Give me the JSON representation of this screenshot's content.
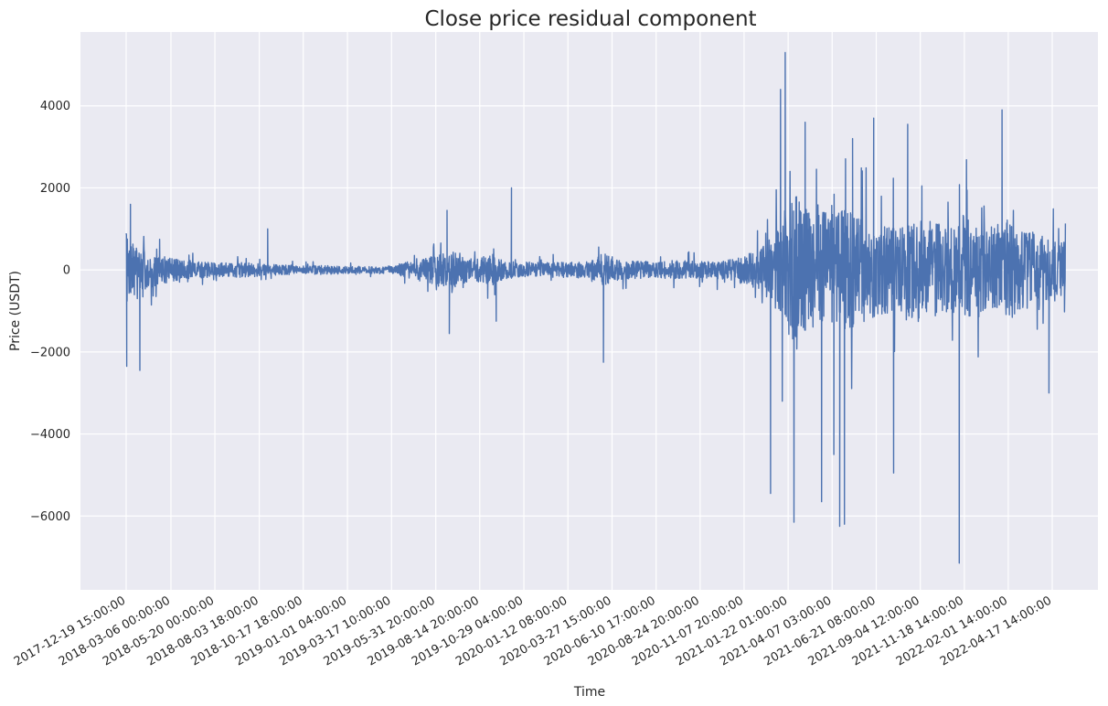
{
  "chart_data": {
    "type": "line",
    "title": "Close price residual component",
    "xlabel": "Time",
    "ylabel": "Price (USDT)",
    "grid": true,
    "legend": "none",
    "colors": {
      "background": "#eaeaf2",
      "grid": "#ffffff",
      "series": "#4c72b0"
    },
    "x_ticks": [
      "2017-12-19 15:00:00",
      "2018-03-06 00:00:00",
      "2018-05-20 00:00:00",
      "2018-08-03 18:00:00",
      "2018-10-17 18:00:00",
      "2019-01-01 04:00:00",
      "2019-03-17 10:00:00",
      "2019-05-31 20:00:00",
      "2019-08-14 20:00:00",
      "2019-10-29 04:00:00",
      "2020-01-12 08:00:00",
      "2020-03-27 15:00:00",
      "2020-06-10 17:00:00",
      "2020-08-24 20:00:00",
      "2020-11-07 20:00:00",
      "2021-01-22 01:00:00",
      "2021-04-07 03:00:00",
      "2021-06-21 08:00:00",
      "2021-09-04 12:00:00",
      "2021-11-18 14:00:00",
      "2022-02-01 14:00:00",
      "2022-04-17 14:00:00"
    ],
    "xlim": [
      "2017-12-19 15:00:00",
      "2022-06-01 00:00:00"
    ],
    "ylim": [
      -7800,
      5800
    ],
    "y_ticks": [
      -6000,
      -4000,
      -2000,
      0,
      2000,
      4000
    ],
    "y_tick_labels": [
      "−6000",
      "−4000",
      "−2000",
      "0",
      "2000",
      "4000"
    ],
    "series": [
      {
        "x": [
          "2017-12-19 15:00:00",
          "2017-12-22 00:00:00",
          "2018-01-05 00:00:00",
          "2018-01-20 00:00:00",
          "2018-02-05 00:00:00",
          "2018-03-01 00:00:00",
          "2018-04-01 00:00:00",
          "2018-05-01 00:00:00",
          "2018-06-01 00:00:00",
          "2018-07-01 00:00:00",
          "2018-08-01 00:00:00",
          "2018-08-20 00:00:00",
          "2018-09-15 00:00:00",
          "2018-10-17 18:00:00",
          "2018-11-20 00:00:00",
          "2019-01-01 04:00:00",
          "2019-02-15 00:00:00",
          "2019-03-17 10:00:00",
          "2019-04-15 00:00:00",
          "2019-05-10 00:00:00",
          "2019-06-10 00:00:00",
          "2019-06-26 00:00:00",
          "2019-07-15 00:00:00",
          "2019-08-10 00:00:00",
          "2019-09-05 00:00:00",
          "2019-10-01 00:00:00",
          "2019-10-29 04:00:00",
          "2019-12-01 00:00:00",
          "2020-01-12 08:00:00",
          "2020-02-15 00:00:00",
          "2020-03-13 00:00:00",
          "2020-04-15 00:00:00",
          "2020-05-15 00:00:00",
          "2020-06-10 17:00:00",
          "2020-07-15 00:00:00",
          "2020-08-24 20:00:00",
          "2020-09-20 00:00:00",
          "2020-10-20 00:00:00",
          "2020-11-07 20:00:00",
          "2020-12-05 00:00:00",
          "2020-12-20 00:00:00",
          "2021-01-05 00:00:00",
          "2021-01-22 01:00:00",
          "2021-02-01 00:00:00",
          "2021-02-15 00:00:00",
          "2021-03-01 00:00:00",
          "2021-03-15 00:00:00",
          "2021-04-01 00:00:00",
          "2021-04-15 00:00:00",
          "2021-05-01 00:00:00",
          "2021-05-15 00:00:00",
          "2021-06-01 00:00:00",
          "2021-06-21 08:00:00",
          "2021-07-10 00:00:00",
          "2021-08-01 00:00:00",
          "2021-08-20 00:00:00",
          "2021-09-04 12:00:00",
          "2021-09-25 00:00:00",
          "2021-10-15 00:00:00",
          "2021-11-10 00:00:00",
          "2021-11-18 14:00:00",
          "2021-12-05 00:00:00",
          "2021-12-25 00:00:00",
          "2022-01-15 00:00:00",
          "2022-02-01 14:00:00",
          "2022-02-20 00:00:00",
          "2022-03-10 00:00:00",
          "2022-04-01 00:00:00",
          "2022-04-17 14:00:00",
          "2022-05-01 00:00:00",
          "2022-05-10 00:00:00"
        ],
        "amplitude": [
          2400,
          1600,
          1300,
          1100,
          900,
          700,
          500,
          420,
          380,
          400,
          350,
          300,
          280,
          220,
          250,
          200,
          180,
          220,
          450,
          650,
          950,
          1200,
          700,
          650,
          800,
          500,
          450,
          400,
          420,
          450,
          900,
          500,
          480,
          450,
          500,
          450,
          500,
          600,
          800,
          1100,
          1600,
          2400,
          3200,
          4200,
          3600,
          3100,
          3400,
          3000,
          3000,
          3600,
          3000,
          2800,
          2600,
          2500,
          2300,
          2600,
          2800,
          2600,
          2500,
          2400,
          3100,
          2400,
          2200,
          2500,
          2800,
          2300,
          2100,
          1900,
          1800,
          1700,
          1600
        ],
        "peaks": [
          {
            "x": "2017-12-20 12:00:00",
            "y": -2350
          },
          {
            "x": "2017-12-27 00:00:00",
            "y": 1600
          },
          {
            "x": "2018-01-12 00:00:00",
            "y": -2450
          },
          {
            "x": "2018-08-18 00:00:00",
            "y": 1000
          },
          {
            "x": "2019-06-20 00:00:00",
            "y": 1450
          },
          {
            "x": "2019-06-24 00:00:00",
            "y": -1550
          },
          {
            "x": "2019-09-12 00:00:00",
            "y": -1250
          },
          {
            "x": "2019-10-08 00:00:00",
            "y": 2000
          },
          {
            "x": "2020-03-13 00:00:00",
            "y": -2250
          },
          {
            "x": "2020-12-23 00:00:00",
            "y": -5450
          },
          {
            "x": "2021-01-09 00:00:00",
            "y": 4400
          },
          {
            "x": "2021-01-12 00:00:00",
            "y": -3200
          },
          {
            "x": "2021-01-17 00:00:00",
            "y": 5300
          },
          {
            "x": "2021-02-01 00:00:00",
            "y": -6150
          },
          {
            "x": "2021-02-20 00:00:00",
            "y": 3600
          },
          {
            "x": "2021-03-20 00:00:00",
            "y": -5650
          },
          {
            "x": "2021-04-10 00:00:00",
            "y": -4500
          },
          {
            "x": "2021-04-20 00:00:00",
            "y": -6250
          },
          {
            "x": "2021-04-28 00:00:00",
            "y": -6200
          },
          {
            "x": "2021-05-12 00:00:00",
            "y": 3200
          },
          {
            "x": "2021-06-17 00:00:00",
            "y": 3700
          },
          {
            "x": "2021-07-21 00:00:00",
            "y": -4950
          },
          {
            "x": "2021-08-14 00:00:00",
            "y": 3550
          },
          {
            "x": "2021-11-10 00:00:00",
            "y": -7150
          },
          {
            "x": "2022-01-22 00:00:00",
            "y": 3900
          },
          {
            "x": "2022-04-12 00:00:00",
            "y": -3000
          }
        ]
      }
    ]
  }
}
